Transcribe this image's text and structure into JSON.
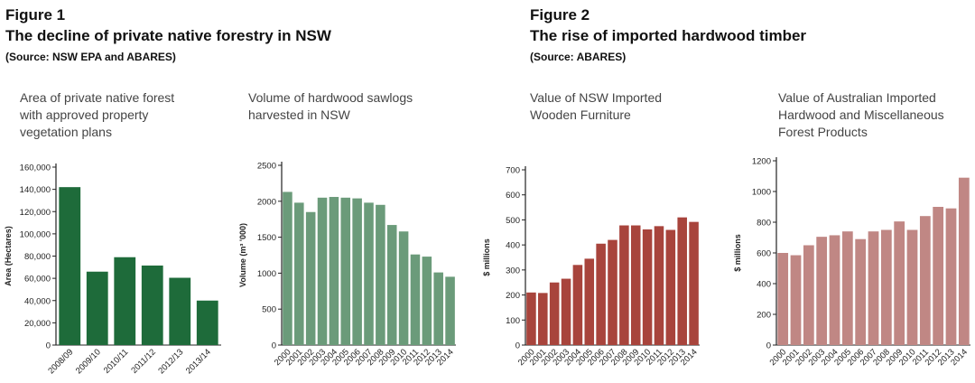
{
  "figure_1": {
    "label": "Figure 1",
    "title": "The decline of private native forestry in NSW",
    "source": "(Source: NSW EPA and ABARES)"
  },
  "figure_2": {
    "label": "Figure 2",
    "title": "The rise of imported hardwood timber",
    "source": "(Source: ABARES)"
  },
  "chart_data": [
    {
      "type": "bar",
      "title": [
        "Area of private native forest",
        "with approved property",
        "vegetation plans"
      ],
      "y_label": "Area (Hectares)",
      "categories": [
        "2008/09",
        "2009/10",
        "2010/11",
        "2011/12",
        "2012/13",
        "2013/14"
      ],
      "values": [
        142000,
        66000,
        79000,
        71500,
        60500,
        40000
      ],
      "color": "#1e6b3a",
      "ylim": [
        0,
        160000
      ],
      "yticks": [
        0,
        {
          "value": 20000,
          "label": "20,000"
        },
        {
          "value": 40000,
          "label": "40,000"
        },
        {
          "value": 60000,
          "label": "60,000"
        },
        {
          "value": 80000,
          "label": "80,000"
        },
        {
          "value": 100000,
          "label": "100,000"
        },
        {
          "value": 120000,
          "label": "120,000"
        },
        {
          "value": 140000,
          "label": "140,000"
        },
        {
          "value": 160000,
          "label": "160,000"
        }
      ]
    },
    {
      "type": "bar",
      "title": [
        "Volume of hardwood sawlogs",
        "harvested in NSW"
      ],
      "y_label": "Volume (m³ '000)",
      "categories": [
        "2000",
        "2001",
        "2002",
        "2003",
        "2004",
        "2005",
        "2006",
        "2007",
        "2008",
        "2009",
        "2010",
        "2011",
        "2012",
        "2013",
        "2014"
      ],
      "values": [
        2130,
        1980,
        1850,
        2050,
        2060,
        2050,
        2040,
        1980,
        1950,
        1670,
        1580,
        1260,
        1230,
        1010,
        950
      ],
      "color": "#6b9b7a",
      "ylim": [
        0,
        2500
      ],
      "yticks": [
        0,
        500,
        1000,
        1500,
        2000,
        2500
      ]
    },
    {
      "type": "bar",
      "title": [
        "Value of NSW Imported",
        "Wooden Furniture"
      ],
      "y_label": "$ millions",
      "categories": [
        "2000",
        "2001",
        "2002",
        "2003",
        "2004",
        "2005",
        "2006",
        "2007",
        "2008",
        "2009",
        "2010",
        "2011",
        "2012",
        "2013",
        "2014"
      ],
      "values": [
        210,
        208,
        250,
        265,
        320,
        345,
        405,
        420,
        478,
        478,
        462,
        475,
        460,
        510,
        492
      ],
      "color": "#a8443c",
      "ylim": [
        0,
        700
      ],
      "yticks": [
        0,
        100,
        200,
        300,
        400,
        500,
        600,
        700
      ]
    },
    {
      "type": "bar",
      "title": [
        "Value of Australian Imported",
        "Hardwood and Miscellaneous",
        "Forest Products"
      ],
      "y_label": "$ millions",
      "categories": [
        "2000",
        "2001",
        "2002",
        "2003",
        "2004",
        "2005",
        "2006",
        "2007",
        "2008",
        "2009",
        "2010",
        "2011",
        "2012",
        "2013",
        "2014"
      ],
      "values": [
        600,
        585,
        650,
        705,
        715,
        740,
        690,
        740,
        750,
        805,
        750,
        840,
        900,
        890,
        1090
      ],
      "color": "#c08784",
      "ylim": [
        0,
        1200
      ],
      "yticks": [
        0,
        200,
        400,
        600,
        800,
        1000,
        1200
      ]
    }
  ]
}
